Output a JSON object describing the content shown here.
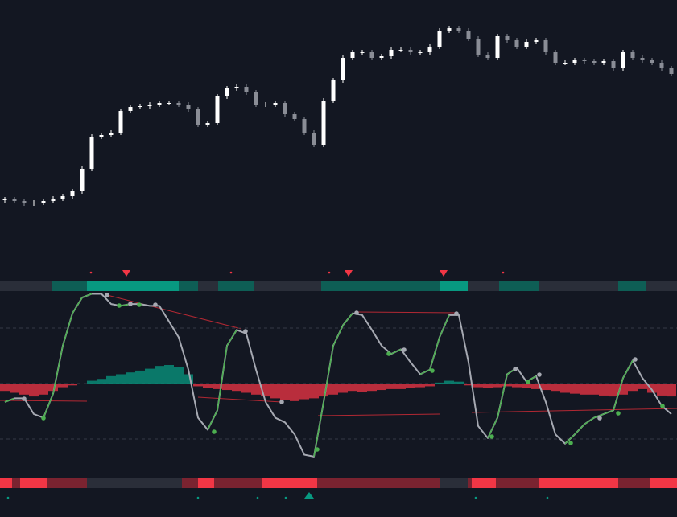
{
  "chart_data": [
    {
      "type": "candlestick",
      "up_color": "#ffffff",
      "down_color": "#8a8d96",
      "ylim": [
        0,
        303
      ],
      "open": [
        54,
        55,
        53,
        50,
        51,
        53,
        56,
        59,
        65,
        93,
        133,
        135,
        138,
        165,
        170,
        171,
        173,
        175,
        175,
        173,
        167,
        148,
        150,
        183,
        193,
        195,
        188,
        173,
        173,
        175,
        161,
        155,
        138,
        123,
        178,
        203,
        231,
        238,
        238,
        231,
        233,
        241,
        241,
        238,
        238,
        245,
        265,
        268,
        265,
        255,
        235,
        231,
        258,
        253,
        245,
        251,
        253,
        238,
        225,
        225,
        228,
        227,
        225,
        227,
        218,
        238,
        231,
        228,
        225,
        218
      ],
      "high": [
        58,
        58,
        56,
        54,
        56,
        59,
        62,
        68,
        96,
        136,
        138,
        141,
        168,
        173,
        174,
        176,
        178,
        178,
        178,
        176,
        170,
        153,
        186,
        196,
        198,
        198,
        191,
        176,
        178,
        178,
        164,
        158,
        141,
        181,
        206,
        234,
        241,
        241,
        241,
        236,
        244,
        244,
        244,
        241,
        248,
        268,
        271,
        271,
        268,
        258,
        238,
        261,
        261,
        256,
        254,
        256,
        256,
        241,
        228,
        231,
        231,
        230,
        230,
        230,
        241,
        241,
        234,
        231,
        228,
        221
      ],
      "low": [
        51,
        50,
        47,
        47,
        48,
        50,
        53,
        56,
        62,
        90,
        130,
        132,
        135,
        162,
        167,
        168,
        170,
        172,
        170,
        164,
        145,
        145,
        147,
        180,
        190,
        185,
        170,
        170,
        170,
        158,
        152,
        135,
        120,
        120,
        175,
        200,
        228,
        235,
        228,
        228,
        230,
        238,
        235,
        235,
        235,
        242,
        262,
        262,
        252,
        232,
        228,
        228,
        250,
        242,
        242,
        248,
        235,
        222,
        222,
        222,
        224,
        222,
        222,
        215,
        215,
        228,
        225,
        222,
        215,
        208
      ],
      "close": [
        55,
        53,
        50,
        51,
        53,
        56,
        59,
        65,
        93,
        133,
        135,
        138,
        165,
        170,
        171,
        173,
        175,
        175,
        173,
        167,
        148,
        150,
        183,
        193,
        195,
        188,
        173,
        173,
        175,
        161,
        155,
        138,
        123,
        178,
        203,
        231,
        238,
        238,
        231,
        233,
        241,
        241,
        238,
        238,
        245,
        265,
        268,
        265,
        255,
        235,
        231,
        258,
        253,
        245,
        251,
        253,
        238,
        225,
        225,
        228,
        227,
        225,
        227,
        218,
        238,
        231,
        228,
        225,
        218,
        211
      ]
    },
    {
      "type": "line",
      "ylim": [
        -100,
        100
      ],
      "yticks": [
        -60,
        0,
        60
      ],
      "grid": true,
      "series": [
        {
          "type": "area",
          "color": "#f23645",
          "color_up": "#089981",
          "values": [
            -8,
            -10,
            -12,
            -14,
            -12,
            -8,
            -4,
            -2,
            0,
            3,
            5,
            8,
            10,
            12,
            14,
            16,
            19,
            20,
            18,
            10,
            -3,
            -5,
            -6,
            -7,
            -8,
            -10,
            -12,
            -14,
            -16,
            -18,
            -19,
            -17,
            -16,
            -14,
            -12,
            -10,
            -8,
            -9,
            -8,
            -7,
            -6,
            -6,
            -5,
            -4,
            -3,
            1,
            3,
            2,
            -2,
            -4,
            -5,
            -4,
            -3,
            -4,
            -5,
            -6,
            -7,
            -8,
            -10,
            -11,
            -12,
            -12,
            -13,
            -14,
            -12,
            -8,
            -6,
            -10,
            -13,
            -14
          ]
        },
        {
          "type": "line",
          "color": "#a6a9b2",
          "color_up": "#4caf50",
          "values": [
            -20,
            -16,
            -16,
            -33,
            -37,
            -11,
            41,
            76,
            93,
            97,
            97,
            86,
            84,
            86,
            86,
            84,
            84,
            67,
            50,
            15,
            -37,
            -50,
            -29,
            41,
            58,
            54,
            15,
            -20,
            -37,
            -42,
            -55,
            -77,
            -79,
            -20,
            41,
            63,
            76,
            74,
            58,
            41,
            32,
            37,
            23,
            10,
            15,
            50,
            74,
            74,
            23,
            -46,
            -59,
            -37,
            10,
            17,
            2,
            8,
            -20,
            -55,
            -65,
            -55,
            -44,
            -37,
            -33,
            -29,
            6,
            25,
            6,
            -7,
            -24,
            -33
          ]
        }
      ]
    }
  ]
}
